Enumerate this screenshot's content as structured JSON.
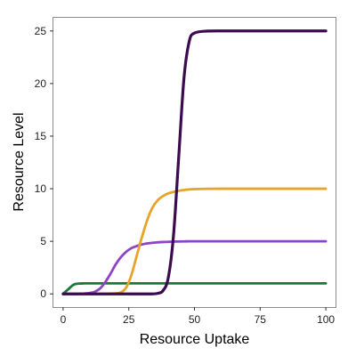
{
  "chart_data": {
    "type": "line",
    "title": "",
    "xlabel": "Resource Uptake",
    "ylabel": "Resource Level",
    "xlim": [
      -3.7,
      103.7
    ],
    "ylim": [
      -1.25,
      26.25
    ],
    "xticks": [
      0,
      25,
      50,
      75,
      100
    ],
    "xtick_labels": [
      "0",
      "25",
      "50",
      "75",
      "100"
    ],
    "yticks": [
      0,
      5,
      10,
      15,
      20,
      25
    ],
    "ytick_labels": [
      "0",
      "5",
      "10",
      "15",
      "20",
      "25"
    ],
    "grid": false,
    "legend": "none",
    "x": [
      0,
      2,
      4,
      6,
      8,
      10,
      12,
      14,
      16,
      18,
      20,
      22,
      24,
      26,
      28,
      30,
      32,
      34,
      36,
      38,
      40,
      42,
      44,
      46,
      48,
      50,
      55,
      60,
      70,
      80,
      90,
      100
    ],
    "series": [
      {
        "color": "#1a7a3a",
        "values": [
          0.02,
          0.45,
          0.88,
          0.98,
          1.0,
          1.0,
          1.0,
          1.0,
          1.0,
          1.0,
          1.0,
          1.0,
          1.0,
          1.0,
          1.0,
          1.0,
          1.0,
          1.0,
          1.0,
          1.0,
          1.0,
          1.0,
          1.0,
          1.0,
          1.0,
          1.0,
          1.0,
          1.0,
          1.0,
          1.0,
          1.0,
          1.0
        ]
      },
      {
        "color": "#8e44c7",
        "values": [
          0.0,
          0.0,
          0.0,
          0.01,
          0.03,
          0.08,
          0.2,
          0.5,
          1.1,
          1.9,
          2.8,
          3.5,
          4.0,
          4.35,
          4.55,
          4.7,
          4.8,
          4.86,
          4.9,
          4.93,
          4.95,
          4.97,
          4.98,
          4.99,
          5.0,
          5.0,
          5.0,
          5.0,
          5.0,
          5.0,
          5.0,
          5.0
        ]
      },
      {
        "color": "#e8a32a",
        "values": [
          0.0,
          0.0,
          0.0,
          0.0,
          0.0,
          0.0,
          0.0,
          0.0,
          0.0,
          0.02,
          0.05,
          0.15,
          0.6,
          1.8,
          3.6,
          5.4,
          7.0,
          8.2,
          8.9,
          9.3,
          9.55,
          9.7,
          9.8,
          9.88,
          9.93,
          9.96,
          9.99,
          10.0,
          10.0,
          10.0,
          10.0,
          10.0
        ]
      },
      {
        "color": "#3b0a4f",
        "values": [
          0.0,
          0.0,
          0.0,
          0.0,
          0.0,
          0.0,
          0.0,
          0.0,
          0.0,
          0.0,
          0.0,
          0.0,
          0.0,
          0.0,
          0.0,
          0.0,
          0.0,
          0.0,
          0.05,
          0.3,
          1.5,
          5.5,
          13.0,
          20.5,
          24.0,
          24.8,
          24.99,
          25.0,
          25.0,
          25.0,
          25.0,
          25.0
        ]
      }
    ]
  }
}
